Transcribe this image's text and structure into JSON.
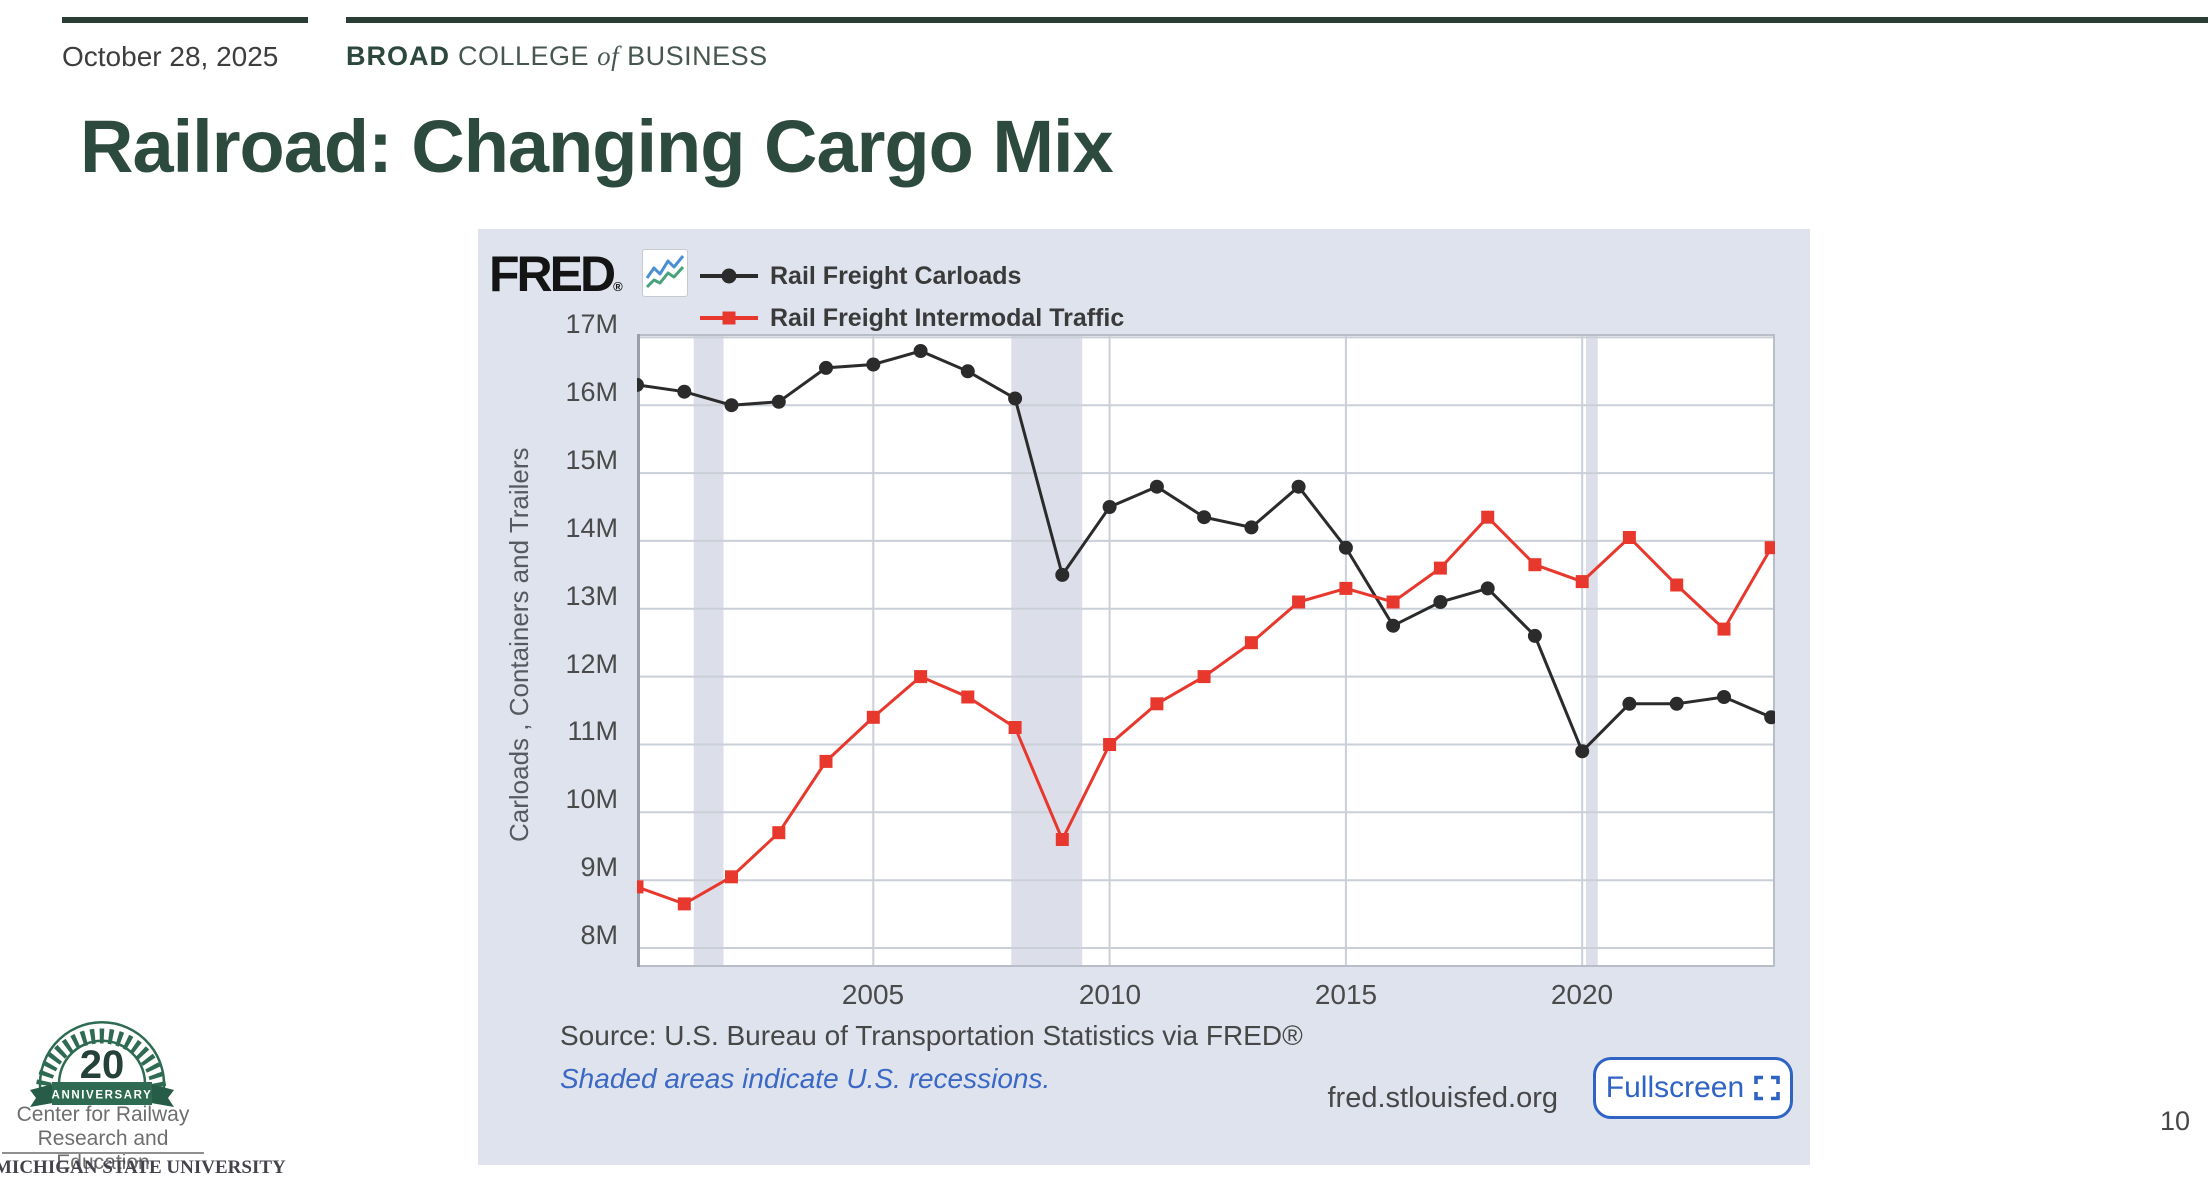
{
  "slide": {
    "date": "October 28, 2025",
    "brand": {
      "bold": "BROAD",
      "college": "COLLEGE",
      "of": "of",
      "business": "BUSINESS"
    },
    "title": "Railroad: Changing Cargo Mix",
    "page_number": "10"
  },
  "chart_card": {
    "logo_text": "FRED",
    "registered_mark": "®",
    "source_line": "Source: U.S. Bureau of Transportation Statistics via FRED®",
    "recession_note": "Shaded areas indicate U.S. recessions.",
    "site": "fred.stlouisfed.org",
    "fullscreen_label": "Fullscreen"
  },
  "footer_logo": {
    "anniversary_number": "20",
    "anniversary_word": "ANNIVERSARY",
    "org_line1": "Center for Railway",
    "org_line2": "Research and Education",
    "university": "MICHIGAN STATE UNIVERSITY"
  },
  "chart_data": {
    "type": "line",
    "title": "",
    "xlabel": "",
    "ylabel": "Carloads , Containers and Trailers",
    "x": [
      2000,
      2001,
      2002,
      2003,
      2004,
      2005,
      2006,
      2007,
      2008,
      2009,
      2010,
      2011,
      2012,
      2013,
      2014,
      2015,
      2016,
      2017,
      2018,
      2019,
      2020,
      2021,
      2022,
      2023,
      2024
    ],
    "series": [
      {
        "name": "Rail Freight Carloads",
        "color": "#2b2b2b",
        "marker": "circle",
        "values": [
          16.3,
          16.2,
          16.0,
          16.05,
          16.55,
          16.6,
          16.8,
          16.5,
          16.1,
          13.5,
          14.5,
          14.8,
          14.35,
          14.2,
          14.8,
          13.9,
          12.75,
          13.1,
          13.3,
          12.6,
          10.9,
          11.6,
          11.6,
          11.7,
          11.4
        ]
      },
      {
        "name": "Rail Freight Intermodal Traffic",
        "color": "#e8382d",
        "marker": "square",
        "values": [
          8.9,
          8.65,
          9.05,
          9.7,
          10.75,
          11.4,
          12.0,
          11.7,
          11.25,
          9.6,
          11.0,
          11.6,
          12.0,
          12.5,
          13.1,
          13.3,
          13.1,
          13.6,
          14.35,
          13.65,
          13.4,
          14.05,
          13.35,
          12.7,
          13.9
        ]
      }
    ],
    "xticks": [
      {
        "value": 2005,
        "label": "2005"
      },
      {
        "value": 2010,
        "label": "2010"
      },
      {
        "value": 2015,
        "label": "2015"
      },
      {
        "value": 2020,
        "label": "2020"
      }
    ],
    "yticks": [
      {
        "value": 17,
        "label": "17M"
      },
      {
        "value": 16,
        "label": "16M"
      },
      {
        "value": 15,
        "label": "15M"
      },
      {
        "value": 14,
        "label": "14M"
      },
      {
        "value": 13,
        "label": "13M"
      },
      {
        "value": 12,
        "label": "12M"
      },
      {
        "value": 11,
        "label": "11M"
      },
      {
        "value": 10,
        "label": "10M"
      },
      {
        "value": 9,
        "label": "9M"
      },
      {
        "value": 8,
        "label": "8M"
      }
    ],
    "xlim": [
      2000,
      2024.08
    ],
    "ylim": [
      7.72,
      17.05
    ],
    "recessions": [
      [
        2001.2,
        2001.83
      ],
      [
        2007.92,
        2009.42
      ],
      [
        2020.08,
        2020.33
      ]
    ],
    "grid": true,
    "legend_position": "top-left",
    "grid_color": "#cacfd8",
    "band_color": "#dcdfe9",
    "plot_border_color": "#b9bdc7",
    "axis_line_color": "#99a0ab"
  }
}
